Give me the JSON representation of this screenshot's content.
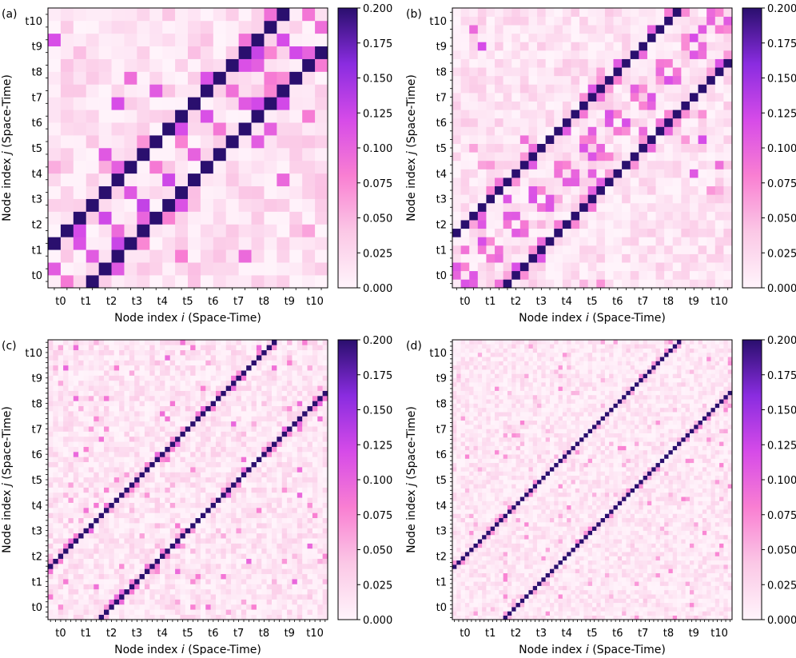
{
  "figure": {
    "colormap": [
      "#fff4fb",
      "#fbc8e6",
      "#f97fd2",
      "#d64be8",
      "#8a2ce0",
      "#2a0f6e"
    ],
    "cbar_ticks": [
      "0.000",
      "0.025",
      "0.050",
      "0.075",
      "0.100",
      "0.125",
      "0.150",
      "0.175",
      "0.200"
    ]
  },
  "chart_data": [
    {
      "type": "heatmap",
      "panel_label": "(a)",
      "xlabel_pre": "Node index ",
      "xlabel_var": "i",
      "xlabel_post": " (Space-Time)",
      "ylabel_pre": "Node index ",
      "ylabel_var": "j",
      "ylabel_post": " (Space-Time)",
      "tick_labels": [
        "t0",
        "t1",
        "t2",
        "t3",
        "t4",
        "t5",
        "t6",
        "t7",
        "t8",
        "t9",
        "t10"
      ],
      "grid_size": 22,
      "nodes_per_time": 2,
      "diagonal_offsets": [
        -3,
        3
      ],
      "diagonal_value": 0.2,
      "intra_value": 0.13,
      "background_range": [
        0.0,
        0.045
      ],
      "vmin": 0.0,
      "vmax": 0.2,
      "colorbar_label": ""
    },
    {
      "type": "heatmap",
      "panel_label": "(b)",
      "xlabel_pre": "Node index ",
      "xlabel_var": "i",
      "xlabel_post": " (Space-Time)",
      "ylabel_pre": "Node index ",
      "ylabel_var": "j",
      "ylabel_post": " (Space-Time)",
      "tick_labels": [
        "t0",
        "t1",
        "t2",
        "t3",
        "t4",
        "t5",
        "t6",
        "t7",
        "t8",
        "t9",
        "t10"
      ],
      "grid_size": 33,
      "nodes_per_time": 3,
      "diagonal_offsets": [
        -6,
        6
      ],
      "diagonal_value": 0.2,
      "intra_value": 0.12,
      "background_range": [
        0.0,
        0.04
      ],
      "vmin": 0.0,
      "vmax": 0.2,
      "colorbar_label": ""
    },
    {
      "type": "heatmap",
      "panel_label": "(c)",
      "xlabel_pre": "Node index ",
      "xlabel_var": "i",
      "xlabel_post": " (Space-Time)",
      "ylabel_pre": "Node index ",
      "ylabel_var": "j",
      "ylabel_post": " (Space-Time)",
      "tick_labels": [
        "t0",
        "t1",
        "t2",
        "t3",
        "t4",
        "t5",
        "t6",
        "t7",
        "t8",
        "t9",
        "t10"
      ],
      "grid_size": 55,
      "nodes_per_time": 5,
      "diagonal_offsets": [
        -10,
        10
      ],
      "diagonal_value": 0.2,
      "intra_value": 0.1,
      "background_range": [
        0.0,
        0.035
      ],
      "vmin": 0.0,
      "vmax": 0.2,
      "colorbar_label": ""
    },
    {
      "type": "heatmap",
      "panel_label": "(d)",
      "xlabel_pre": "Node index ",
      "xlabel_var": "i",
      "xlabel_post": " (Space-Time)",
      "ylabel_pre": "Node index ",
      "ylabel_var": "j",
      "ylabel_post": " (Space-Time)",
      "tick_labels": [
        "t0",
        "t1",
        "t2",
        "t3",
        "t4",
        "t5",
        "t6",
        "t7",
        "t8",
        "t9",
        "t10"
      ],
      "grid_size": 66,
      "nodes_per_time": 6,
      "diagonal_offsets": [
        -12,
        12
      ],
      "diagonal_value": 0.2,
      "intra_value": 0.08,
      "background_range": [
        0.0,
        0.03
      ],
      "vmin": 0.0,
      "vmax": 0.2,
      "colorbar_label": ""
    }
  ]
}
